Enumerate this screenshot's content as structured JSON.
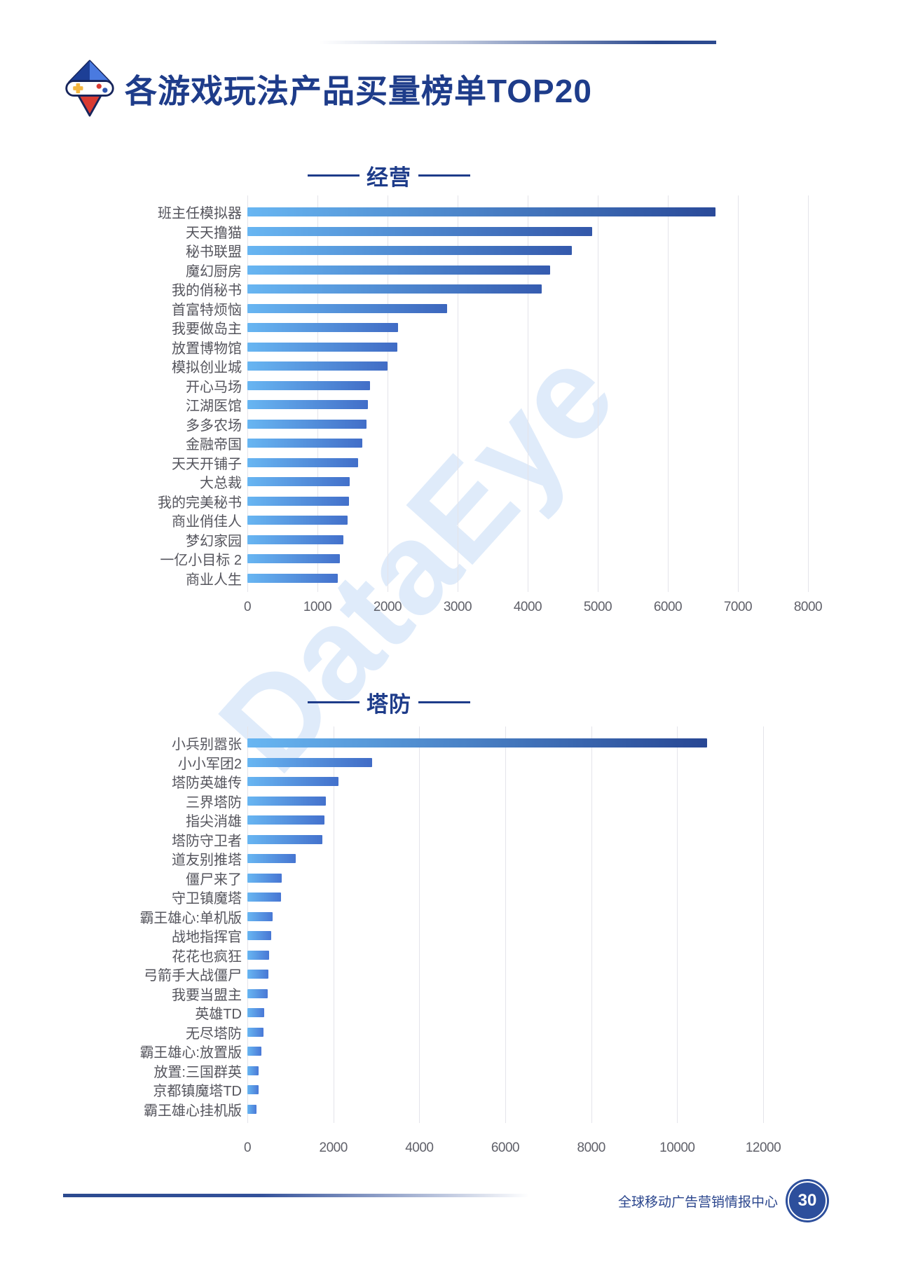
{
  "header": {
    "title": "各游戏玩法产品买量榜单TOP20"
  },
  "watermark": "DataEye",
  "footer": {
    "org": "全球移动广告营销情报中心",
    "page_number": "30"
  },
  "colors": {
    "navy": "#1e3c8a",
    "bar_start": "#68b6f2",
    "bar_end_light": "#4a7ad8",
    "bar_end_dark": "#24418c",
    "label_gray": "#55555d",
    "tick_gray": "#60616a",
    "gridline": "#e4e4ea",
    "badge_fill": "#2d4f9c"
  },
  "chart_data": [
    {
      "type": "bar",
      "orientation": "horizontal",
      "title": "经营",
      "categories": [
        "班主任模拟器",
        "天天撸猫",
        "秘书联盟",
        "魔幻厨房",
        "我的俏秘书",
        "首富特烦恼",
        "我要做岛主",
        "放置博物馆",
        "模拟创业城",
        "开心马场",
        "江湖医馆",
        "多多农场",
        "金融帝国",
        "天天开铺子",
        "大总裁",
        "我的完美秘书",
        "商业俏佳人",
        "梦幻家园",
        "一亿小目标 2",
        "商业人生"
      ],
      "values": [
        6680,
        4920,
        4630,
        4320,
        4200,
        2850,
        2150,
        2140,
        2000,
        1750,
        1720,
        1700,
        1640,
        1580,
        1460,
        1450,
        1430,
        1370,
        1320,
        1290
      ],
      "xlabel": "",
      "ylabel": "",
      "xlim": [
        0,
        8000
      ],
      "xticks": [
        0,
        1000,
        2000,
        3000,
        4000,
        5000,
        6000,
        7000,
        8000
      ],
      "grid": true,
      "legend": false
    },
    {
      "type": "bar",
      "orientation": "horizontal",
      "title": "塔防",
      "categories": [
        "小兵别嚣张",
        "小小军团2",
        "塔防英雄传",
        "三界塔防",
        "指尖消雄",
        "塔防守卫者",
        "道友别推塔",
        "僵尸来了",
        "守卫镇魔塔",
        "霸王雄心:单机版",
        "战地指挥官",
        "花花也疯狂",
        "弓箭手大战僵尸",
        "我要当盟主",
        "英雄TD",
        "无尽塔防",
        "霸王雄心:放置版",
        "放置:三国群英",
        "京都镇魔塔TD",
        "霸王雄心挂机版"
      ],
      "values": [
        10690,
        2910,
        2120,
        1830,
        1790,
        1740,
        1120,
        800,
        790,
        580,
        560,
        510,
        490,
        470,
        390,
        370,
        320,
        265,
        260,
        220
      ],
      "xlabel": "",
      "ylabel": "",
      "xlim": [
        0,
        12000
      ],
      "xticks": [
        0,
        2000,
        4000,
        6000,
        8000,
        10000,
        12000
      ],
      "grid": true,
      "legend": false
    }
  ]
}
